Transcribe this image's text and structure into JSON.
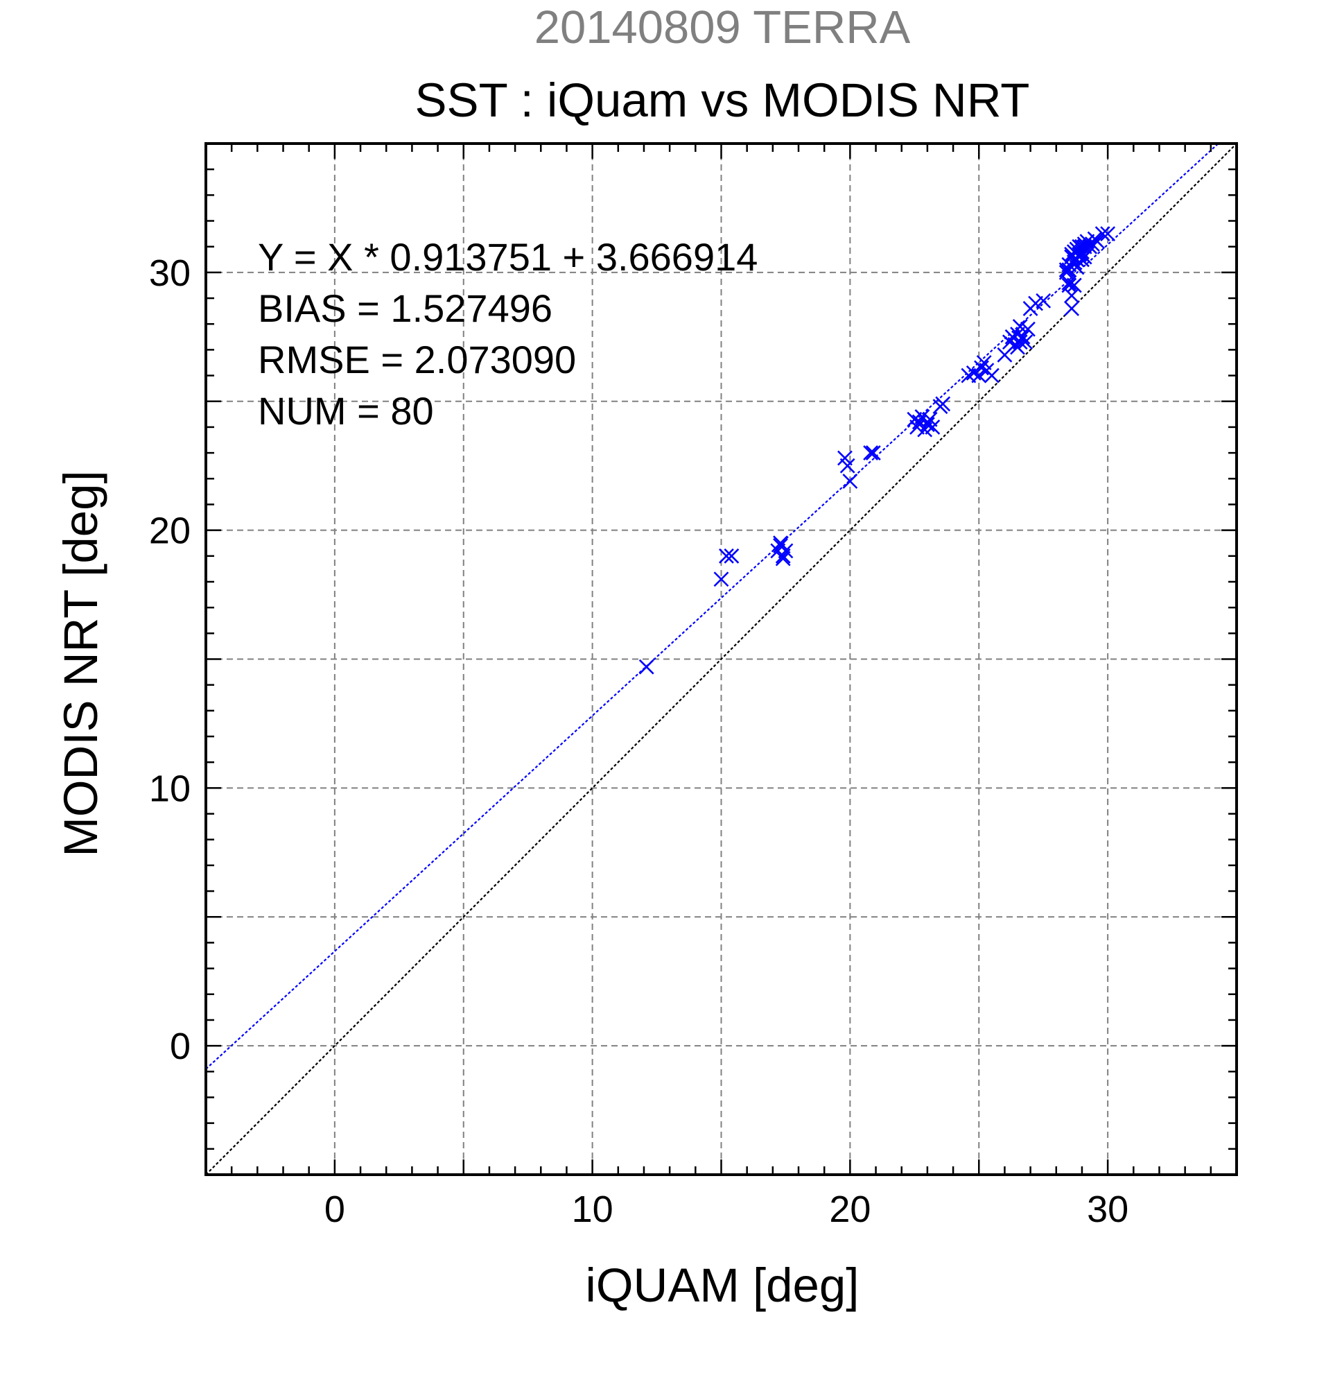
{
  "chart_data": {
    "type": "scatter",
    "title_line1": "20140809 TERRA",
    "title_line2": "SST : iQuam vs MODIS NRT",
    "xlabel": "iQUAM [deg]",
    "ylabel": "MODIS NRT [deg]",
    "xlim": [
      -5,
      35
    ],
    "ylim": [
      -5,
      35
    ],
    "xticks": [
      0,
      10,
      20,
      30
    ],
    "yticks": [
      0,
      10,
      20,
      30
    ],
    "xtick_labels": [
      "0",
      "10",
      "20",
      "30"
    ],
    "ytick_labels": [
      "0",
      "10",
      "20",
      "30"
    ],
    "grid": true,
    "grid_step": 5,
    "minor_tick_step": 1,
    "marker": "x",
    "point_color": "#0000ff",
    "stats": {
      "equation": "Y = X * 0.913751 + 3.666914",
      "bias": "BIAS = 1.527496",
      "rmse": "RMSE = 2.073090",
      "num": "NUM = 80"
    },
    "regression": {
      "slope": 0.913751,
      "intercept": 3.666914,
      "color": "#0000ff",
      "style": "dotted"
    },
    "identity_line": {
      "slope": 1,
      "intercept": 0,
      "color": "#000000",
      "style": "dotted"
    },
    "points": {
      "x": [
        12.1,
        15.0,
        15.2,
        15.4,
        17.2,
        17.3,
        17.4,
        17.5,
        17.3,
        17.4,
        19.8,
        19.9,
        20.0,
        20.8,
        20.9,
        22.5,
        22.6,
        22.7,
        22.8,
        22.9,
        23.0,
        23.1,
        23.2,
        23.5,
        23.6,
        24.6,
        24.8,
        25.0,
        25.1,
        25.2,
        25.3,
        25.5,
        26.0,
        26.2,
        26.3,
        26.4,
        26.5,
        26.5,
        26.6,
        26.6,
        26.7,
        26.8,
        26.9,
        27.0,
        27.2,
        27.5,
        28.4,
        28.5,
        28.5,
        28.5,
        28.5,
        28.6,
        28.6,
        28.6,
        28.7,
        28.7,
        28.7,
        28.8,
        28.8,
        28.8,
        28.9,
        28.9,
        29.0,
        29.0,
        29.0,
        29.1,
        29.1,
        29.2,
        29.3,
        29.4,
        29.5,
        29.6,
        29.8,
        30.0,
        28.4,
        28.6,
        28.9,
        29.1,
        29.0,
        28.8
      ],
      "y": [
        14.7,
        18.1,
        19.0,
        19.0,
        19.2,
        19.5,
        18.9,
        19.2,
        19.4,
        19.0,
        22.8,
        22.5,
        21.9,
        23.0,
        23.0,
        24.3,
        24.0,
        24.2,
        24.4,
        23.9,
        24.1,
        24.3,
        24.0,
        24.8,
        24.9,
        26.0,
        26.1,
        26.0,
        26.3,
        26.5,
        26.2,
        26.0,
        26.8,
        27.3,
        27.5,
        27.2,
        27.6,
        27.1,
        27.9,
        27.3,
        27.5,
        27.3,
        27.8,
        28.6,
        28.8,
        28.9,
        30.0,
        29.6,
        30.3,
        29.5,
        30.1,
        29.1,
        28.6,
        30.6,
        29.5,
        30.4,
        30.8,
        30.2,
        30.9,
        30.5,
        31.0,
        30.6,
        30.5,
        31.0,
        30.8,
        31.1,
        30.6,
        31.2,
        31.0,
        31.1,
        31.3,
        31.2,
        31.5,
        31.5,
        30.1,
        30.7,
        30.7,
        31.0,
        30.7,
        30.5
      ]
    }
  }
}
